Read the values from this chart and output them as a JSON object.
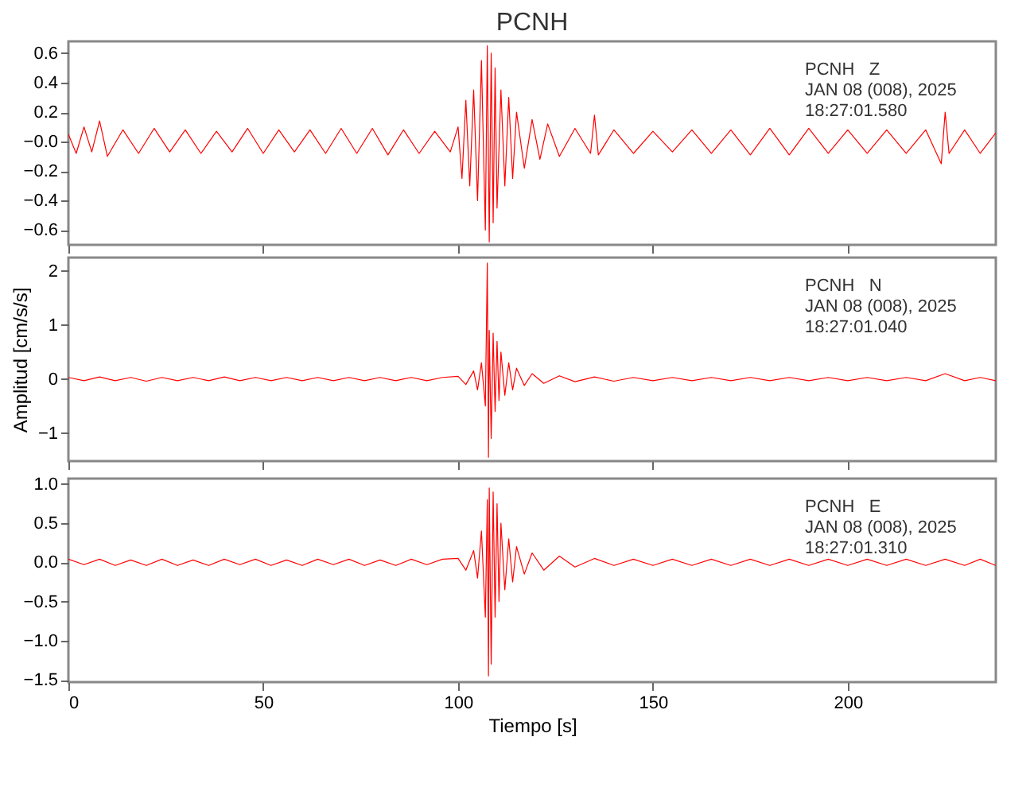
{
  "chart_data": [
    {
      "type": "line",
      "title": "PCNH",
      "xlim": [
        0,
        238
      ],
      "xticks": [
        0,
        50,
        100,
        150,
        200
      ],
      "ylim": [
        -0.7,
        0.68
      ],
      "yticks": [
        -0.6,
        -0.4,
        -0.2,
        {
          "value": 0,
          "label": "−0.0"
        },
        0.2,
        0.4,
        0.6
      ],
      "tick_labels": "y",
      "grid": false,
      "annotations": [
        "PCNH   Z",
        "JAN 08 (008), 2025",
        "18:27:01.580"
      ],
      "series": [
        {
          "color": "#ff0000",
          "x": [
            0,
            2,
            4,
            6,
            8,
            10,
            14,
            18,
            22,
            26,
            30,
            34,
            38,
            42,
            46,
            50,
            54,
            58,
            62,
            66,
            70,
            74,
            78,
            82,
            86,
            90,
            94,
            98,
            100,
            101,
            102,
            103,
            104,
            105,
            106,
            107,
            107.5,
            108,
            108.5,
            109,
            109.5,
            110,
            111,
            112,
            113,
            114,
            115,
            117,
            119,
            121,
            123,
            126,
            130,
            134,
            135,
            136,
            140,
            145,
            150,
            155,
            160,
            165,
            170,
            175,
            180,
            185,
            190,
            195,
            200,
            205,
            210,
            215,
            220,
            224,
            225,
            226,
            230,
            234,
            238
          ],
          "values": [
            0.05,
            -0.08,
            0.1,
            -0.07,
            0.14,
            -0.1,
            0.08,
            -0.08,
            0.09,
            -0.07,
            0.08,
            -0.08,
            0.07,
            -0.07,
            0.09,
            -0.08,
            0.08,
            -0.07,
            0.08,
            -0.08,
            0.09,
            -0.08,
            0.09,
            -0.09,
            0.08,
            -0.08,
            0.07,
            -0.07,
            0.1,
            -0.25,
            0.28,
            -0.3,
            0.35,
            -0.4,
            0.55,
            -0.6,
            0.65,
            -0.68,
            0.6,
            -0.55,
            0.5,
            -0.45,
            0.35,
            -0.3,
            0.3,
            -0.25,
            0.2,
            -0.18,
            0.15,
            -0.12,
            0.12,
            -0.1,
            0.09,
            -0.08,
            0.18,
            -0.09,
            0.08,
            -0.08,
            0.07,
            -0.07,
            0.08,
            -0.08,
            0.08,
            -0.09,
            0.09,
            -0.09,
            0.09,
            -0.08,
            0.08,
            -0.08,
            0.08,
            -0.08,
            0.08,
            -0.15,
            0.2,
            -0.08,
            0.08,
            -0.08,
            0.06
          ]
        }
      ]
    },
    {
      "type": "line",
      "ylabel": "Amplitud [cm/s/s]",
      "xlim": [
        0,
        238
      ],
      "xticks": [
        0,
        50,
        100,
        150,
        200
      ],
      "ylim": [
        -1.52,
        2.25
      ],
      "yticks": [
        -1,
        0,
        1,
        2
      ],
      "tick_labels": "y",
      "grid": false,
      "annotations": [
        "PCNH   N",
        "JAN 08 (008), 2025",
        "18:27:01.040"
      ],
      "series": [
        {
          "color": "#ff0000",
          "x": [
            0,
            4,
            8,
            12,
            16,
            20,
            24,
            28,
            32,
            36,
            40,
            44,
            48,
            52,
            56,
            60,
            64,
            68,
            72,
            76,
            80,
            84,
            88,
            92,
            96,
            100,
            102,
            104,
            105,
            106,
            107,
            107.5,
            107.8,
            108,
            108.5,
            109,
            109.5,
            110,
            110.5,
            111,
            112,
            113,
            114,
            115,
            117,
            119,
            122,
            126,
            130,
            135,
            140,
            145,
            150,
            155,
            160,
            165,
            170,
            175,
            180,
            185,
            190,
            195,
            200,
            205,
            210,
            215,
            220,
            225,
            230,
            234,
            238
          ],
          "values": [
            0.03,
            -0.03,
            0.04,
            -0.03,
            0.03,
            -0.04,
            0.03,
            -0.03,
            0.03,
            -0.03,
            0.04,
            -0.03,
            0.03,
            -0.03,
            0.03,
            -0.03,
            0.03,
            -0.03,
            0.03,
            -0.03,
            0.03,
            -0.03,
            0.03,
            -0.03,
            0.03,
            0.05,
            -0.1,
            0.15,
            -0.2,
            0.3,
            -0.5,
            2.15,
            -1.45,
            0.9,
            -1.1,
            0.85,
            -0.6,
            0.7,
            -0.4,
            0.5,
            -0.3,
            0.3,
            -0.2,
            0.2,
            -0.12,
            0.1,
            -0.08,
            0.06,
            -0.05,
            0.04,
            -0.04,
            0.03,
            -0.03,
            0.03,
            -0.03,
            0.03,
            -0.03,
            0.03,
            -0.03,
            0.03,
            -0.03,
            0.03,
            -0.03,
            0.03,
            -0.03,
            0.03,
            -0.03,
            0.1,
            -0.03,
            0.03,
            -0.03
          ]
        }
      ]
    },
    {
      "type": "line",
      "xlabel": "Tiempo [s]",
      "xlim": [
        0,
        238
      ],
      "xticks": [
        0,
        50,
        100,
        150,
        200
      ],
      "ylim": [
        -1.53,
        1.07
      ],
      "yticks": [
        {
          "value": -1.5,
          "label": "−1.5"
        },
        {
          "value": -1,
          "label": "−1.0"
        },
        {
          "value": -0.5,
          "label": "−0.5"
        },
        {
          "value": 0,
          "label": "0.0"
        },
        {
          "value": 0.5,
          "label": "0.5"
        },
        {
          "value": 1,
          "label": "1.0"
        }
      ],
      "grid": false,
      "annotations": [
        "PCNH   E",
        "JAN 08 (008), 2025",
        "18:27:01.310"
      ],
      "series": [
        {
          "color": "#ff0000",
          "x": [
            0,
            4,
            8,
            12,
            16,
            20,
            24,
            28,
            32,
            36,
            40,
            44,
            48,
            52,
            56,
            60,
            64,
            68,
            72,
            76,
            80,
            84,
            88,
            92,
            96,
            100,
            102,
            104,
            105,
            106,
            107,
            107.5,
            107.8,
            108,
            108.5,
            109,
            109.5,
            110,
            110.5,
            111,
            112,
            113,
            114,
            115,
            117,
            119,
            122,
            126,
            130,
            135,
            140,
            145,
            150,
            155,
            160,
            165,
            170,
            175,
            180,
            185,
            190,
            195,
            200,
            205,
            210,
            215,
            220,
            225,
            230,
            234,
            238
          ],
          "values": [
            0.04,
            -0.03,
            0.04,
            -0.04,
            0.03,
            -0.04,
            0.04,
            -0.04,
            0.03,
            -0.04,
            0.04,
            -0.03,
            0.04,
            -0.04,
            0.03,
            -0.04,
            0.04,
            -0.03,
            0.04,
            -0.04,
            0.03,
            -0.04,
            0.04,
            -0.03,
            0.04,
            0.05,
            -0.1,
            0.15,
            -0.2,
            0.4,
            -0.7,
            0.8,
            -1.45,
            0.95,
            -1.3,
            0.9,
            -0.7,
            0.75,
            -0.5,
            0.5,
            -0.35,
            0.3,
            -0.25,
            0.2,
            -0.15,
            0.12,
            -0.1,
            0.08,
            -0.06,
            0.05,
            -0.04,
            0.04,
            -0.04,
            0.04,
            -0.04,
            0.04,
            -0.04,
            0.04,
            -0.04,
            0.04,
            -0.04,
            0.04,
            -0.04,
            0.04,
            -0.04,
            0.04,
            -0.04,
            0.04,
            -0.04,
            0.04,
            -0.04
          ]
        }
      ]
    }
  ]
}
